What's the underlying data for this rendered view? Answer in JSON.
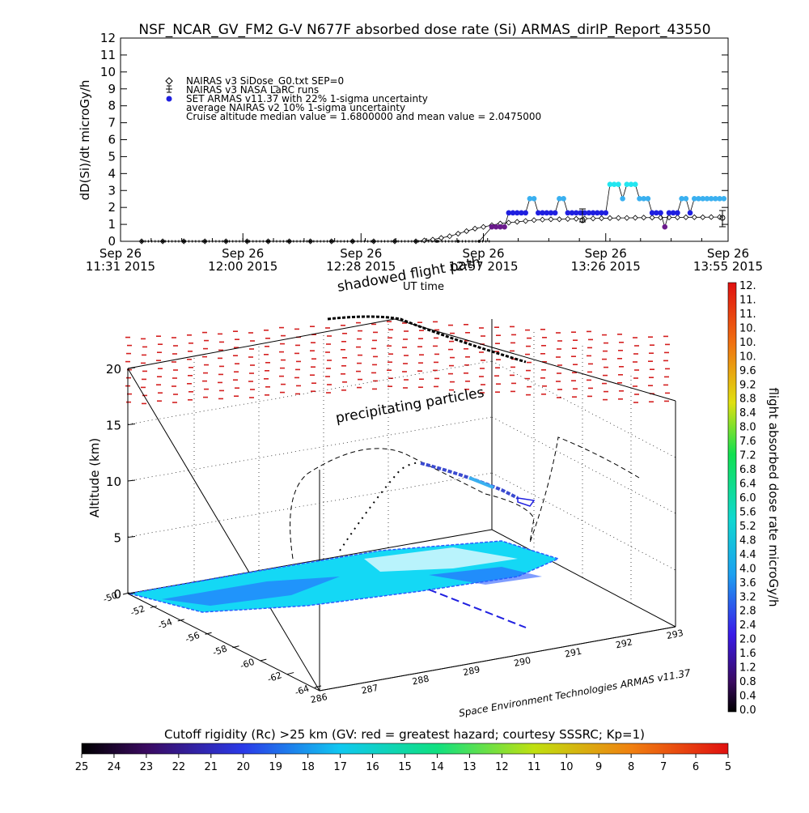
{
  "page": {
    "title": "NSF_NCAR_GV_FM2 G-V     N677F  absorbed dose rate (Si) ARMAS_dirIP_Report_43550",
    "credit": "Space Environment Technologies ARMAS v11.37",
    "shadowed_label": "shadowed flight path",
    "ut_time_label": "UT time",
    "precip_label": "precipitating particles"
  },
  "colors": {
    "armas_dark": "#1f1fe0",
    "armas_light": "#3ab0f0",
    "armas_cyan": "#22e6f0",
    "armas_violet": "#6a1a8c",
    "cutoff_red": "#d42020",
    "surface_cyan": "#14d8f5",
    "surface_blue": "#2a5cff"
  },
  "chart_data": [
    {
      "type": "scatter",
      "title": "NSF_NCAR_GV_FM2 G-V     N677F  absorbed dose rate (Si) ARMAS_dirIP_Report_43550",
      "ylabel": "dD(Si)/dt microGy/h",
      "ylim": [
        0,
        12
      ],
      "yticks": [
        "0",
        "1",
        "2",
        "3",
        "4",
        "5",
        "6",
        "7",
        "8",
        "9",
        "10",
        "11",
        "12"
      ],
      "xlim_minutes": [
        0,
        144
      ],
      "xticks": [
        {
          "line1": "Sep 26",
          "line2": "11:31 2015",
          "t": 0
        },
        {
          "line1": "Sep 26",
          "line2": "12:00 2015",
          "t": 29
        },
        {
          "line1": "Sep 26",
          "line2": "12:28 2015",
          "t": 57
        },
        {
          "line1": "Sep 26",
          "line2": "12:57 2015",
          "t": 86
        },
        {
          "line1": "Sep 26",
          "line2": "13:26 2015",
          "t": 115
        },
        {
          "line1": "Sep 26",
          "line2": "13:55 2015",
          "t": 144
        }
      ],
      "legend": [
        {
          "marker": "diamond",
          "label": "NAIRAS v3 SiDose_G0.txt SEP=0"
        },
        {
          "marker": "errorbar",
          "label": "NAIRAS v3 NASA LaRC runs"
        },
        {
          "marker": "dot",
          "label": "SET ARMAS v11.37 with 22% 1-sigma uncertainty"
        },
        {
          "marker": "none",
          "label": "average NAIRAS v2 10% 1-sigma uncertainty"
        },
        {
          "marker": "none",
          "label": "Cruise altitude median value = 1.6800000 and mean value = 2.0475000"
        }
      ],
      "series": [
        {
          "name": "NAIRAS v3 SiDose_G0.txt SEP=0",
          "x": [
            5,
            10,
            15,
            20,
            25,
            30,
            35,
            40,
            45,
            50,
            55,
            60,
            65,
            70,
            72,
            74,
            76,
            78,
            80,
            82,
            84,
            86,
            88,
            90,
            92,
            94,
            96,
            98,
            100,
            102,
            104,
            106,
            108,
            110,
            112,
            114,
            116,
            118,
            120,
            122,
            124,
            126,
            128,
            130,
            132,
            134,
            136,
            138,
            140,
            142
          ],
          "y": [
            0,
            0,
            0,
            0,
            0,
            0,
            0,
            0,
            0,
            0,
            0,
            0,
            0,
            0,
            0.05,
            0.1,
            0.2,
            0.3,
            0.45,
            0.6,
            0.75,
            0.85,
            0.95,
            1.05,
            1.1,
            1.15,
            1.2,
            1.25,
            1.28,
            1.3,
            1.3,
            1.32,
            1.33,
            1.34,
            1.35,
            1.36,
            1.37,
            1.38,
            1.38,
            1.39,
            1.4,
            1.4,
            1.4,
            1.41,
            1.41,
            1.42,
            1.42,
            1.42,
            1.43,
            1.43
          ]
        },
        {
          "name": "SET ARMAS v11.37 with 22% 1-sigma uncertainty",
          "x": [
            5,
            10,
            15,
            20,
            25,
            30,
            35,
            40,
            45,
            50,
            55,
            60,
            65,
            70,
            75,
            80,
            85,
            88,
            89,
            90,
            91,
            92,
            93,
            94,
            95,
            96,
            97,
            98,
            99,
            100,
            101,
            102,
            103,
            104,
            105,
            106,
            107,
            108,
            109,
            110,
            111,
            112,
            113,
            114,
            115,
            116,
            117,
            118,
            119,
            120,
            121,
            122,
            123,
            124,
            125,
            126,
            127,
            128,
            129,
            130,
            131,
            132,
            133,
            134,
            135,
            136,
            137,
            138,
            139,
            140,
            141,
            142,
            143
          ],
          "y": [
            0,
            0,
            0,
            0,
            0,
            0,
            0,
            0,
            0,
            0,
            0,
            0,
            0,
            0,
            0,
            0,
            0,
            0.85,
            0.85,
            0.85,
            0.85,
            1.68,
            1.68,
            1.68,
            1.68,
            1.68,
            2.52,
            2.52,
            1.68,
            1.68,
            1.68,
            1.68,
            1.68,
            2.52,
            2.52,
            1.68,
            1.68,
            1.68,
            1.68,
            1.68,
            1.68,
            1.68,
            1.68,
            1.68,
            1.68,
            3.36,
            3.36,
            3.36,
            2.52,
            3.36,
            3.36,
            3.36,
            2.52,
            2.52,
            2.52,
            1.68,
            1.68,
            1.68,
            0.85,
            1.68,
            1.68,
            1.68,
            2.52,
            2.52,
            1.68,
            2.52,
            2.52,
            2.52,
            2.52,
            2.52,
            2.52,
            2.52,
            2.52
          ]
        }
      ]
    },
    {
      "type": "scatter",
      "title": "",
      "zlabel": "Altitude (km)",
      "zlim": [
        0,
        20
      ],
      "zticks": [
        "0",
        "5",
        "10",
        "15",
        "20"
      ],
      "lat_ticks": [
        "-50",
        "-52",
        "-54",
        "-56",
        "-58",
        "-60",
        "-62",
        "-64"
      ],
      "lon_ticks": [
        "286",
        "287",
        "288",
        "289",
        "290",
        "291",
        "292",
        "293"
      ],
      "shadowed_label": "shadowed flight path",
      "ut_time_label": "UT time",
      "precip_label": "precipitating particles",
      "credit": "Space Environment Technologies ARMAS v11.37"
    },
    {
      "type": "heatmap",
      "title": "flight absorbed dose rate microGy/h",
      "ticks": [
        "0.0",
        "0.4",
        "0.8",
        "1.2",
        "1.6",
        "2.0",
        "2.4",
        "2.8",
        "3.2",
        "3.6",
        "4.0",
        "4.4",
        "4.8",
        "5.2",
        "5.6",
        "6.0",
        "6.4",
        "6.8",
        "7.2",
        "7.6",
        "8.0",
        "8.4",
        "8.8",
        "9.2",
        "9.6",
        "10.",
        "10.",
        "10.",
        "11.",
        "11.",
        "12."
      ],
      "range": [
        0,
        12
      ]
    },
    {
      "type": "heatmap",
      "title": "Cutoff rigidity (Rc) >25 km (GV: red = greatest hazard; courtesy SSSRC; Kp=1)",
      "ticks": [
        "25",
        "24",
        "23",
        "22",
        "21",
        "20",
        "19",
        "18",
        "17",
        "16",
        "15",
        "14",
        "13",
        "12",
        "11",
        "10",
        "9",
        "8",
        "7",
        "6",
        "5"
      ],
      "range": [
        25,
        5
      ]
    }
  ]
}
